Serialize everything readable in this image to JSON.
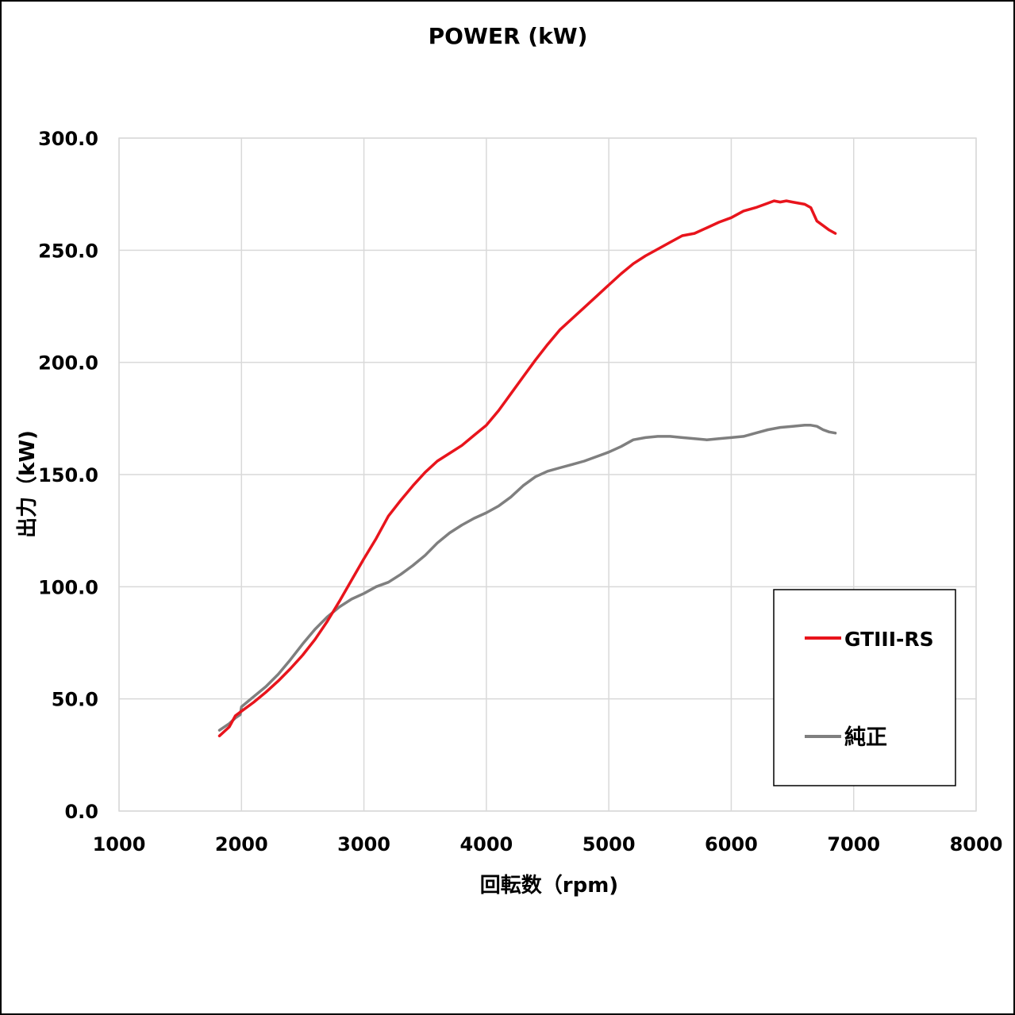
{
  "chart_data": {
    "type": "line",
    "title": "POWER (kW)",
    "xlabel": "回転数（rpm)",
    "ylabel": "出力（kW)",
    "xlim": [
      1000,
      8000
    ],
    "ylim": [
      0,
      300
    ],
    "xticks": [
      "1000",
      "2000",
      "3000",
      "4000",
      "5000",
      "6000",
      "7000",
      "8000"
    ],
    "yticks": [
      "0.0",
      "50.0",
      "100.0",
      "150.0",
      "200.0",
      "250.0",
      "300.0"
    ],
    "grid": true,
    "legend_position": "bottom-right",
    "series": [
      {
        "name": "GTIII-RS",
        "color": "#e8141c",
        "x": [
          1820,
          1900,
          1950,
          2000,
          2100,
          2200,
          2300,
          2400,
          2500,
          2600,
          2700,
          2800,
          2900,
          3000,
          3100,
          3200,
          3300,
          3400,
          3500,
          3600,
          3700,
          3800,
          3900,
          4000,
          4100,
          4200,
          4300,
          4400,
          4500,
          4600,
          4700,
          4800,
          4900,
          5000,
          5100,
          5200,
          5300,
          5400,
          5500,
          5600,
          5700,
          5800,
          5900,
          6000,
          6100,
          6200,
          6300,
          6350,
          6400,
          6450,
          6500,
          6550,
          6600,
          6650,
          6700,
          6750,
          6800,
          6850
        ],
        "y": [
          33.5,
          37.5,
          42.5,
          44.5,
          48.5,
          53,
          58,
          63.5,
          69.5,
          76.5,
          84.5,
          93.5,
          103,
          112.5,
          121.5,
          131.5,
          138.5,
          145,
          151,
          156,
          159.5,
          163,
          167.5,
          172,
          178.5,
          186,
          193.5,
          201,
          208,
          214.5,
          219.5,
          224.5,
          229.5,
          234.5,
          239.5,
          244,
          247.5,
          250.5,
          253.5,
          256.5,
          257.5,
          260,
          262.5,
          264.5,
          267.5,
          269,
          271,
          272,
          271.5,
          272,
          271.5,
          271,
          270.5,
          269,
          263,
          261,
          259,
          257.5
        ]
      },
      {
        "name": "純正",
        "color": "#7f7f7f",
        "x": [
          1820,
          1900,
          1950,
          1990,
          2000,
          2100,
          2200,
          2300,
          2400,
          2500,
          2600,
          2700,
          2800,
          2900,
          3000,
          3100,
          3200,
          3300,
          3400,
          3500,
          3600,
          3700,
          3800,
          3900,
          4000,
          4100,
          4200,
          4300,
          4400,
          4500,
          4600,
          4700,
          4800,
          4900,
          5000,
          5100,
          5200,
          5300,
          5400,
          5500,
          5600,
          5700,
          5800,
          5900,
          6000,
          6100,
          6200,
          6300,
          6400,
          6500,
          6600,
          6650,
          6700,
          6750,
          6800,
          6850
        ],
        "y": [
          36,
          39,
          41.5,
          43,
          46.5,
          51,
          55.5,
          61,
          67.5,
          74.5,
          81,
          86.5,
          91,
          94.5,
          97,
          100,
          102,
          105.5,
          109.5,
          114,
          119.5,
          124,
          127.5,
          130.5,
          133,
          136,
          140,
          145,
          149,
          151.5,
          153,
          154.5,
          156,
          158,
          160,
          162.5,
          165.5,
          166.5,
          167,
          167,
          166.5,
          166,
          165.5,
          166,
          166.5,
          167,
          168.5,
          170,
          171,
          171.5,
          172,
          172,
          171.5,
          170,
          169,
          168.5
        ]
      }
    ]
  }
}
